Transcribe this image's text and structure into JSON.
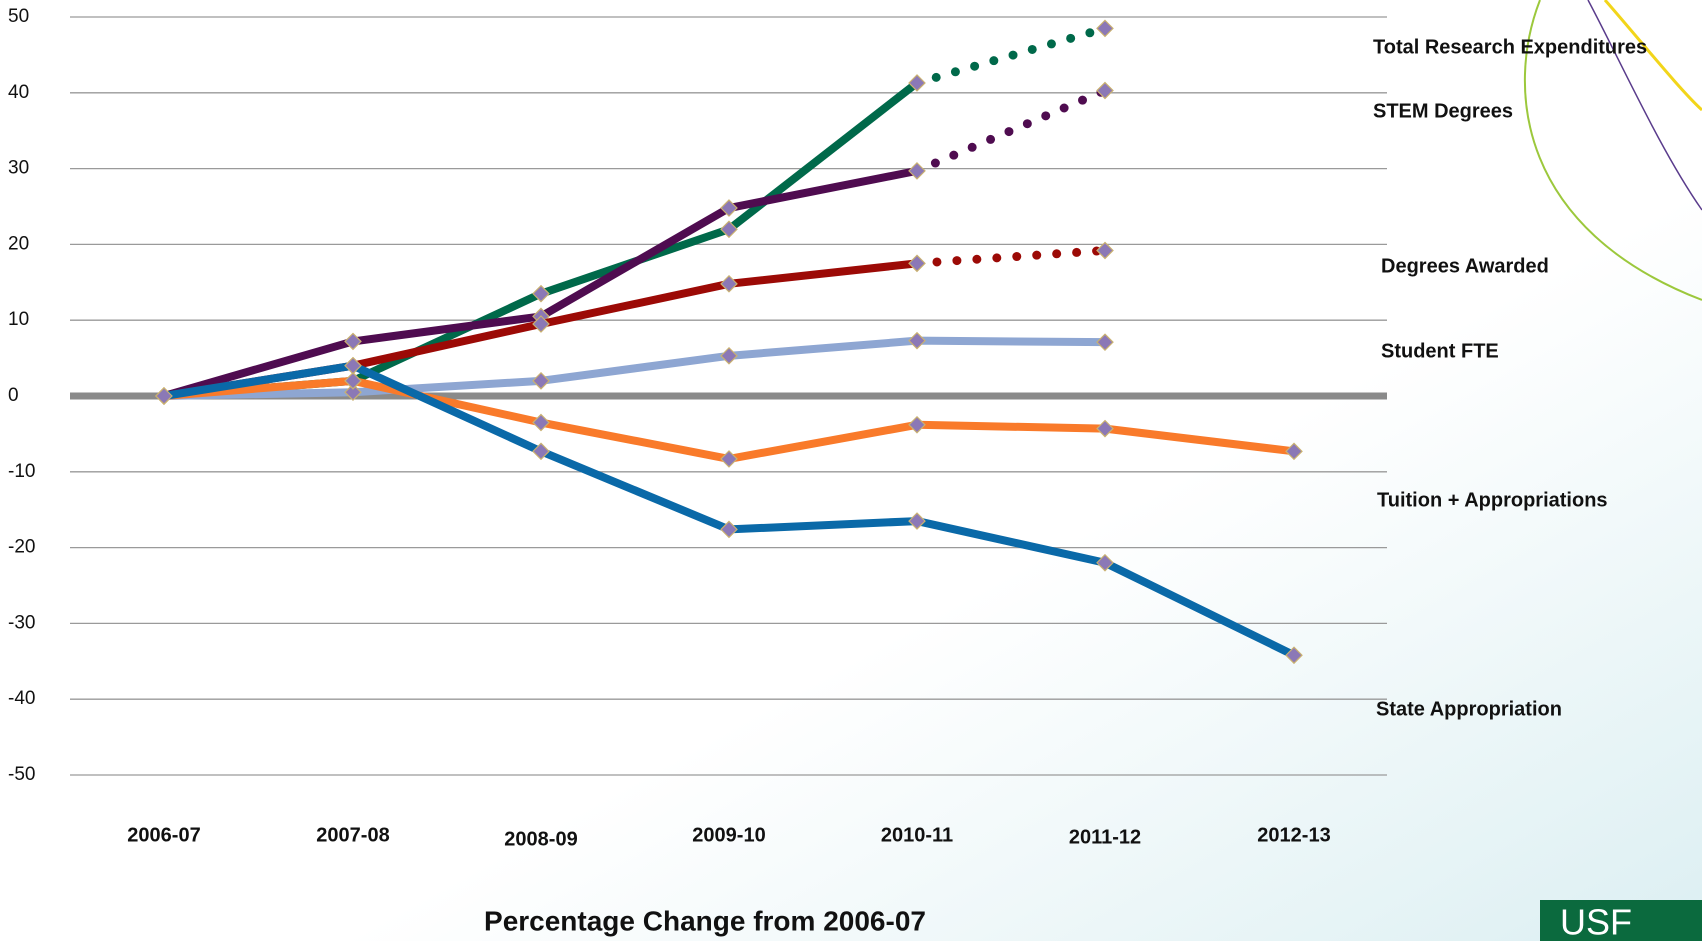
{
  "chart_data": {
    "type": "line",
    "x_label": "Percentage Change from 2006-07",
    "categories": [
      "2006-07",
      "2007-08",
      "2008-09",
      "2009-10",
      "2010-11",
      "2011-12",
      "2012-13"
    ],
    "ylim": [
      -50,
      50
    ],
    "yticks": [
      -50,
      -40,
      -30,
      -20,
      -10,
      0,
      10,
      20,
      30,
      40,
      50
    ],
    "grid": true,
    "zero_line": true,
    "marker_color": "#8b78b6",
    "dotted_from_index": 4,
    "series": [
      {
        "name": "Total Research Expenditures",
        "color": "#00694a",
        "dotted": true,
        "values": [
          0,
          2,
          13.5,
          22,
          41.3,
          48.5,
          null
        ]
      },
      {
        "name": "STEM Degrees",
        "color": "#4f0c50",
        "dotted": true,
        "values": [
          0,
          7.2,
          10.5,
          24.8,
          29.7,
          40.3,
          null
        ]
      },
      {
        "name": "Degrees Awarded",
        "color": "#9c0a06",
        "dotted": true,
        "values": [
          0,
          4,
          9.5,
          14.8,
          17.5,
          19.2,
          null
        ]
      },
      {
        "name": "Student FTE",
        "color": "#8ea6d2",
        "dotted": false,
        "values": [
          0,
          0.5,
          2,
          5.3,
          7.3,
          7.1,
          null
        ]
      },
      {
        "name": "Tuition + Appropriations",
        "color": "#f97a2a",
        "dotted": false,
        "values": [
          0,
          2,
          -3.5,
          -8.3,
          -3.8,
          -4.3,
          -7.3
        ]
      },
      {
        "name": "State Appropriation",
        "color": "#0a69a8",
        "dotted": false,
        "values": [
          0,
          4,
          -7.3,
          -17.6,
          -16.5,
          -22,
          -34.2
        ]
      }
    ]
  }
}
